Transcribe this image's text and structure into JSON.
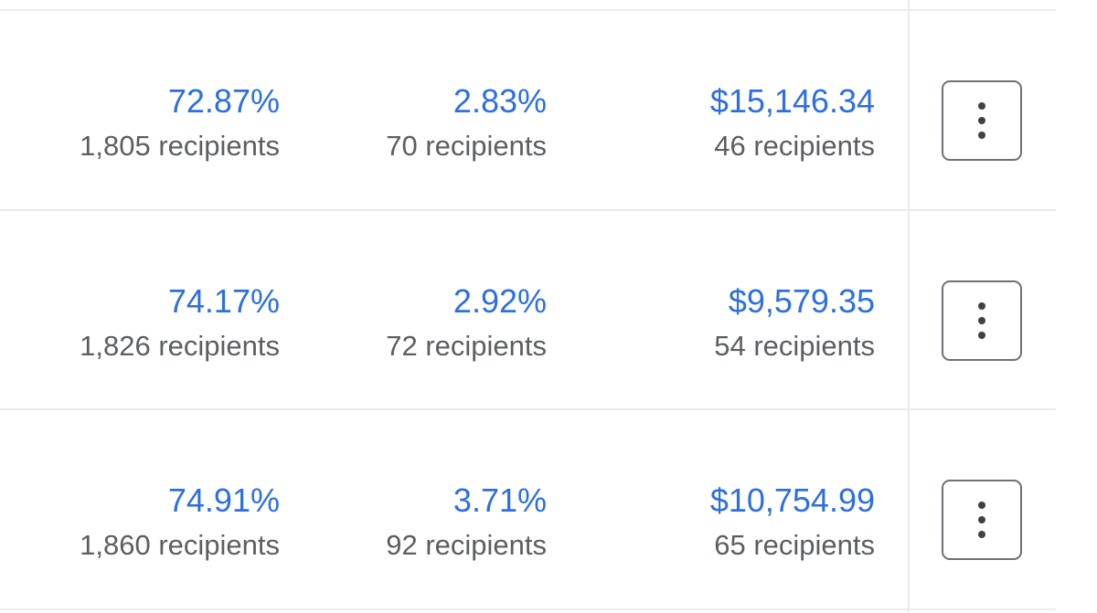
{
  "rows": [
    {
      "open_rate": "72.87%",
      "open_recipients": "1,805 recipients",
      "click_rate": "2.83%",
      "click_recipients": "70 recipients",
      "revenue": "$15,146.34",
      "revenue_recipients": "46 recipients",
      "menu_icon": "more-vertical-icon"
    },
    {
      "open_rate": "74.17%",
      "open_recipients": "1,826 recipients",
      "click_rate": "2.92%",
      "click_recipients": "72 recipients",
      "revenue": "$9,579.35",
      "revenue_recipients": "54 recipients",
      "menu_icon": "more-vertical-icon"
    },
    {
      "open_rate": "74.91%",
      "open_recipients": "1,860 recipients",
      "click_rate": "3.71%",
      "click_recipients": "92 recipients",
      "revenue": "$10,754.99",
      "revenue_recipients": "65 recipients",
      "menu_icon": "more-vertical-icon"
    }
  ],
  "colors": {
    "link_blue": "#2d6fe0",
    "secondary_text": "#5b5e63",
    "divider": "#e9ecef",
    "button_border": "#6e7177"
  }
}
